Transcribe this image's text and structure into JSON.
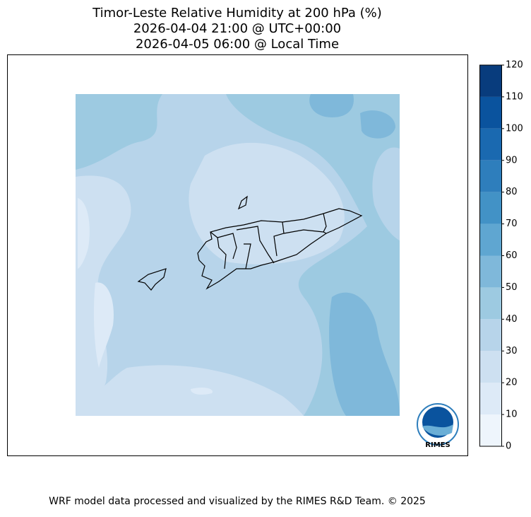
{
  "title": [
    "Timor-Leste Relative Humidity at 200 hPa (%)",
    "2026-04-04 21:00 @ UTC+00:00",
    "2026-04-05 06:00 @ Local Time"
  ],
  "colorbar": {
    "ticks": [
      0,
      10,
      20,
      30,
      40,
      50,
      60,
      70,
      80,
      90,
      100,
      110,
      120
    ],
    "colors": [
      "#eef5fc",
      "#ddeaf7",
      "#cde0f1",
      "#b7d4ea",
      "#9dcae1",
      "#7fb8da",
      "#5fa6d1",
      "#4292c6",
      "#2e7ebc",
      "#1a69b0",
      "#0a539e",
      "#083c7d"
    ]
  },
  "logo": "RIMES",
  "footer": "WRF model data processed and visualized by the RIMES R&D Team. © 2025"
}
